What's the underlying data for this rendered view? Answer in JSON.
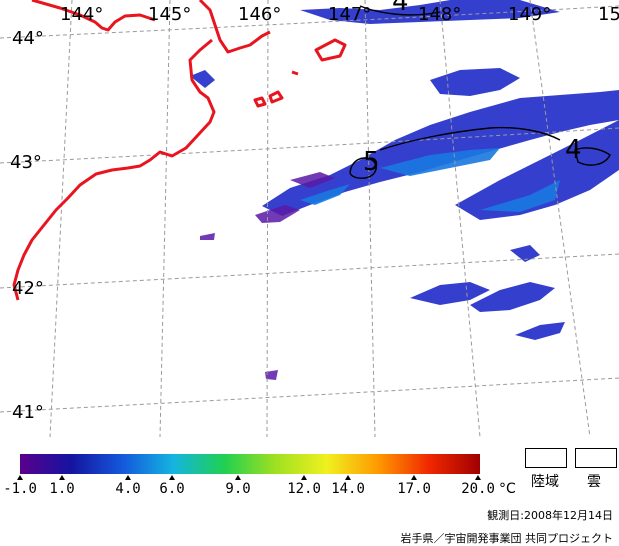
{
  "map": {
    "longitude_labels": [
      "144°",
      "145°",
      "146°",
      "147°",
      "148°",
      "149°",
      "15"
    ],
    "latitude_labels": [
      "44°",
      "43°",
      "42°",
      "41°"
    ],
    "contour_labels": [
      "4",
      "5",
      "4"
    ],
    "colors": {
      "coast": "#e8141e",
      "grid": "#9a9a9a"
    }
  },
  "legend": {
    "colorbar": {
      "stops": [
        "#5a008c",
        "#1414a0",
        "#1458dc",
        "#14b4e0",
        "#20d050",
        "#a0e020",
        "#f0f020",
        "#ff9a00",
        "#f02800",
        "#a00000"
      ],
      "ticks": [
        "-1.0",
        "1.0",
        "4.0",
        "6.0",
        "9.0",
        "12.0",
        "14.0",
        "17.0",
        "20.0"
      ],
      "unit": "°C"
    },
    "keys": [
      {
        "label": "陸域",
        "color": "#ffffff"
      },
      {
        "label": "雲",
        "color": "#ffffff"
      }
    ],
    "observation_date": "観測日:2008年12月14日",
    "credit": "岩手県／宇宙開発事業団 共同プロジェクト"
  }
}
